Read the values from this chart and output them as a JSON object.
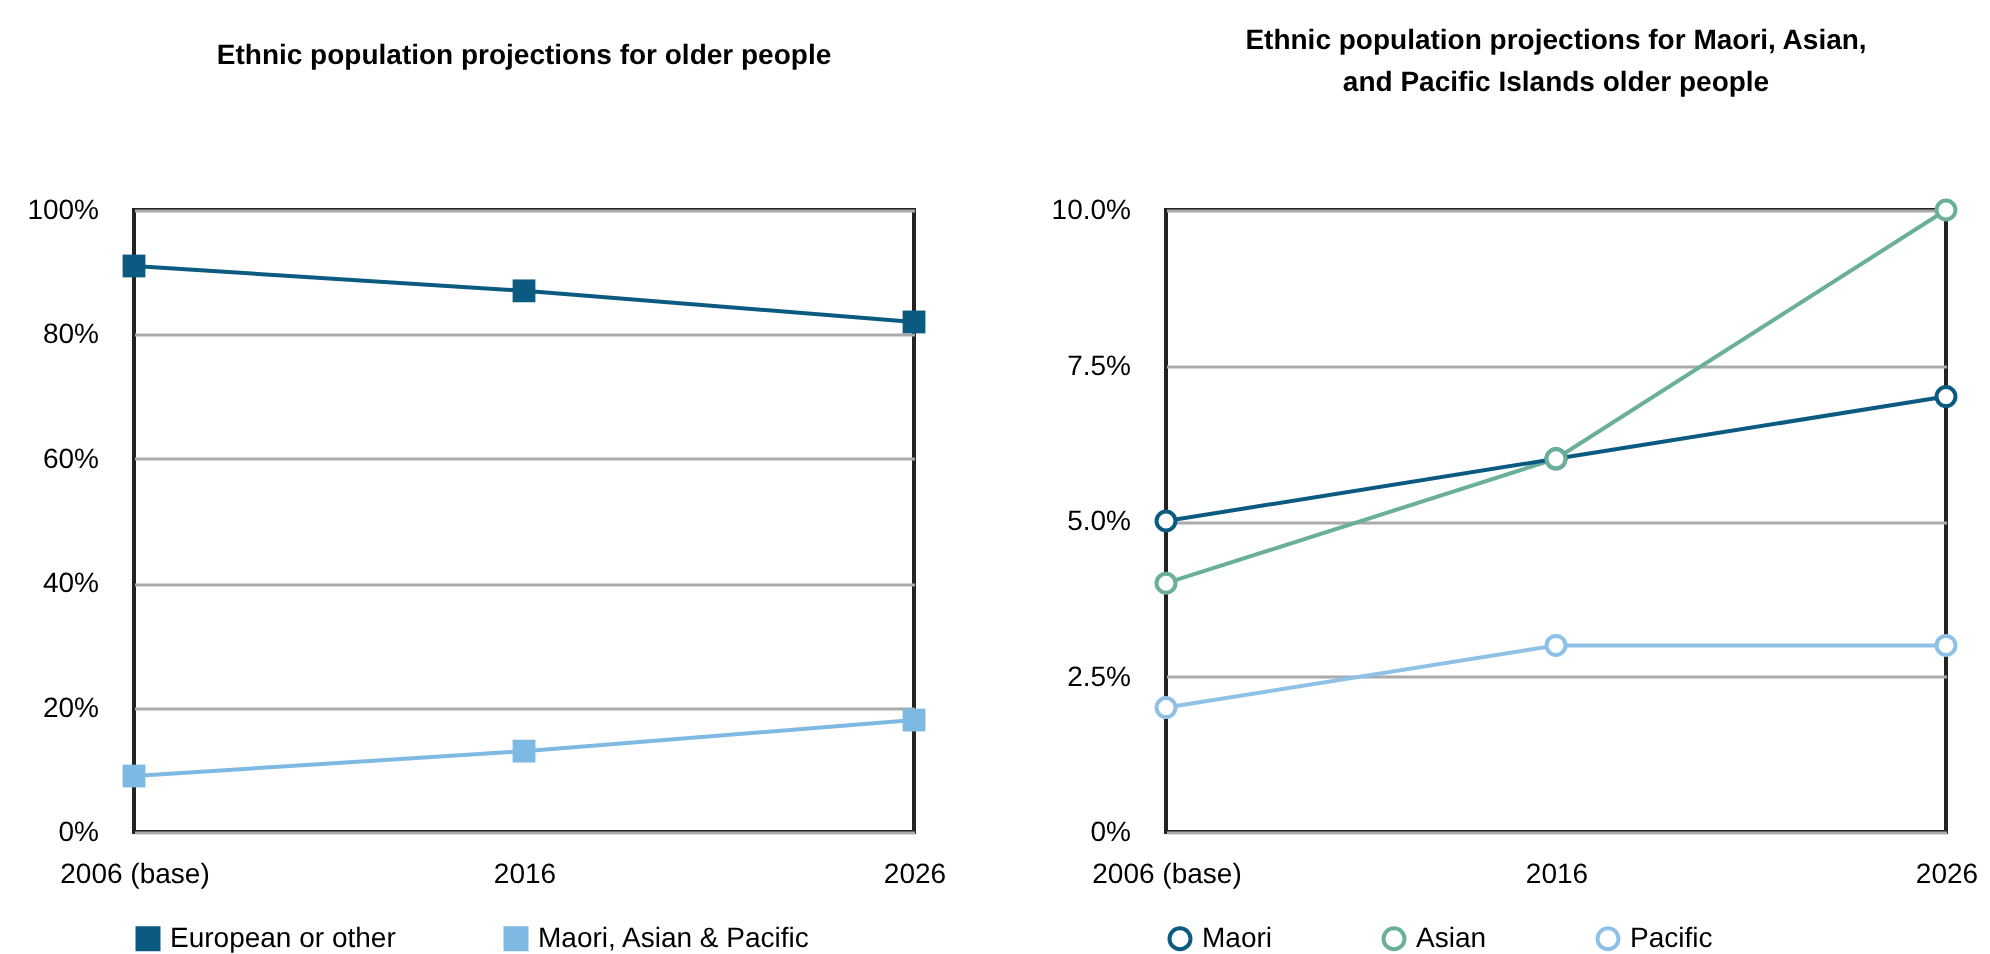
{
  "chart_data": [
    {
      "type": "line",
      "title": "Ethnic population projections for older people",
      "categories": [
        "2006 (base)",
        "2016",
        "2026"
      ],
      "series": [
        {
          "name": "European or other",
          "color": "#0b5a82",
          "values": [
            91,
            87,
            82
          ]
        },
        {
          "name": "Maori, Asian & Pacific",
          "color": "#7db9e3",
          "values": [
            9,
            13,
            18
          ]
        }
      ],
      "ylim": [
        0,
        100
      ],
      "yticks": [
        {
          "value": 0,
          "label": "0%"
        },
        {
          "value": 20,
          "label": "20%"
        },
        {
          "value": 40,
          "label": "40%"
        },
        {
          "value": 60,
          "label": "60%"
        },
        {
          "value": 80,
          "label": "80%"
        },
        {
          "value": 100,
          "label": "100%"
        }
      ],
      "grid": "y",
      "legend": "bottom",
      "marker": "square"
    },
    {
      "type": "line",
      "title": "Ethnic population projections for Maori, Asian, and Pacific Islands older people",
      "categories": [
        "2006 (base)",
        "2016",
        "2026"
      ],
      "series": [
        {
          "name": "Maori",
          "color": "#0b5a82",
          "values": [
            5,
            6,
            7
          ]
        },
        {
          "name": "Asian",
          "color": "#6aaf98",
          "values": [
            4,
            6,
            10
          ]
        },
        {
          "name": "Pacific",
          "color": "#8fc0e6",
          "values": [
            2,
            3,
            3
          ]
        }
      ],
      "ylim": [
        0,
        10
      ],
      "yticks": [
        {
          "value": 0,
          "label": "0%"
        },
        {
          "value": 2.5,
          "label": "2.5%"
        },
        {
          "value": 5,
          "label": "5.0%"
        },
        {
          "value": 7.5,
          "label": "7.5%"
        },
        {
          "value": 10,
          "label": "10.0%"
        }
      ],
      "grid": "y",
      "legend": "bottom",
      "marker": "circle"
    }
  ]
}
